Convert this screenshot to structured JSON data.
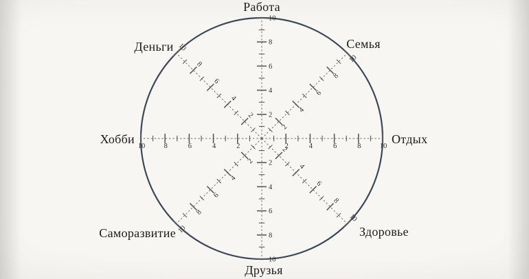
{
  "colors": {
    "background": "#f5f4f1",
    "background_edge": "#dadad7",
    "circle_stroke": "#3d4757",
    "axis_line": "#6e6e6e",
    "tick": "#5a5a5a",
    "tick_number": "#2e2e2e",
    "label": "#1b1b1b"
  },
  "chart_data": {
    "type": "radar",
    "description": "Empty 'wheel of life' template: one outer circle, 8 dashed spokes with ruler ticks 0-10, no plotted series",
    "axes": [
      {
        "id": "rabota",
        "label": "Работа",
        "angle_deg": 90
      },
      {
        "id": "semya",
        "label": "Семья",
        "angle_deg": 45
      },
      {
        "id": "otdyh",
        "label": "Отдых",
        "angle_deg": 0
      },
      {
        "id": "zdorove",
        "label": "Здоровье",
        "angle_deg": -45
      },
      {
        "id": "druzya",
        "label": "Друзья",
        "angle_deg": -90
      },
      {
        "id": "samorazvitie",
        "label": "Саморазвитие",
        "angle_deg": -135
      },
      {
        "id": "hobbi",
        "label": "Хобби",
        "angle_deg": 180
      },
      {
        "id": "dengi",
        "label": "Деньги",
        "angle_deg": 135
      }
    ],
    "scale": {
      "min": 0,
      "max": 10,
      "tick_step": 1,
      "labeled_values": [
        2,
        4,
        6,
        8,
        10
      ]
    },
    "series": [],
    "legend": null,
    "grid": "outer circle only, spokes dashed"
  }
}
